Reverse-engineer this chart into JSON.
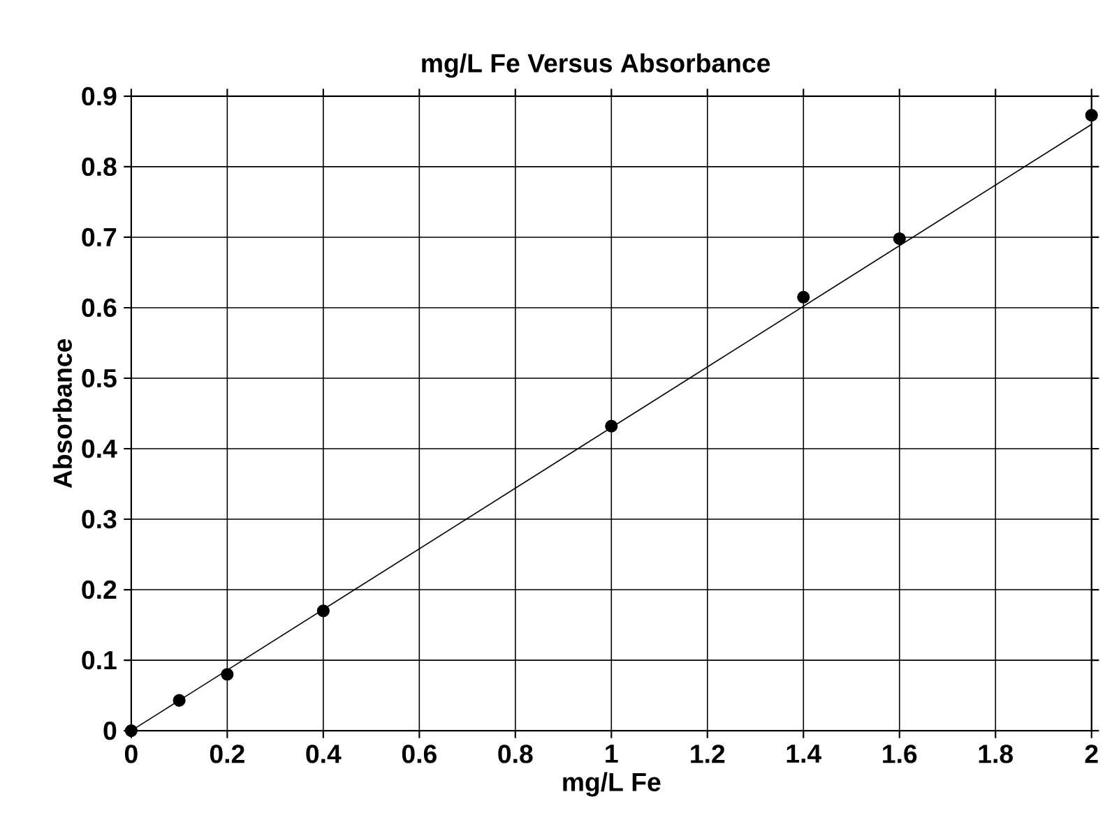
{
  "chart_data": {
    "type": "scatter",
    "title": "mg/L Fe Versus Absorbance",
    "xlabel": "mg/L Fe",
    "ylabel": "Absorbance",
    "series": [
      {
        "color": "#000000",
        "marker": "circle",
        "x": [
          0,
          0.1,
          0.2,
          0.4,
          1.0,
          1.4,
          1.6,
          2.0
        ],
        "values": [
          0,
          0.043,
          0.08,
          0.17,
          0.432,
          0.615,
          0.698,
          0.873
        ]
      },
      {
        "type": "line",
        "color": "#000000",
        "marker": "none",
        "line_style": "solid",
        "x": [
          0,
          2
        ],
        "values": [
          0,
          0.86
        ]
      }
    ],
    "xlim": [
      0,
      2
    ],
    "ylim": [
      0,
      0.9
    ],
    "xticks": [
      0,
      0.2,
      0.4,
      0.6,
      0.8,
      1,
      1.2,
      1.4,
      1.6,
      1.8,
      2
    ],
    "yticks": [
      0,
      0.1,
      0.2,
      0.3,
      0.4,
      0.5,
      0.6,
      0.7,
      0.8,
      0.9
    ],
    "grid": true
  }
}
